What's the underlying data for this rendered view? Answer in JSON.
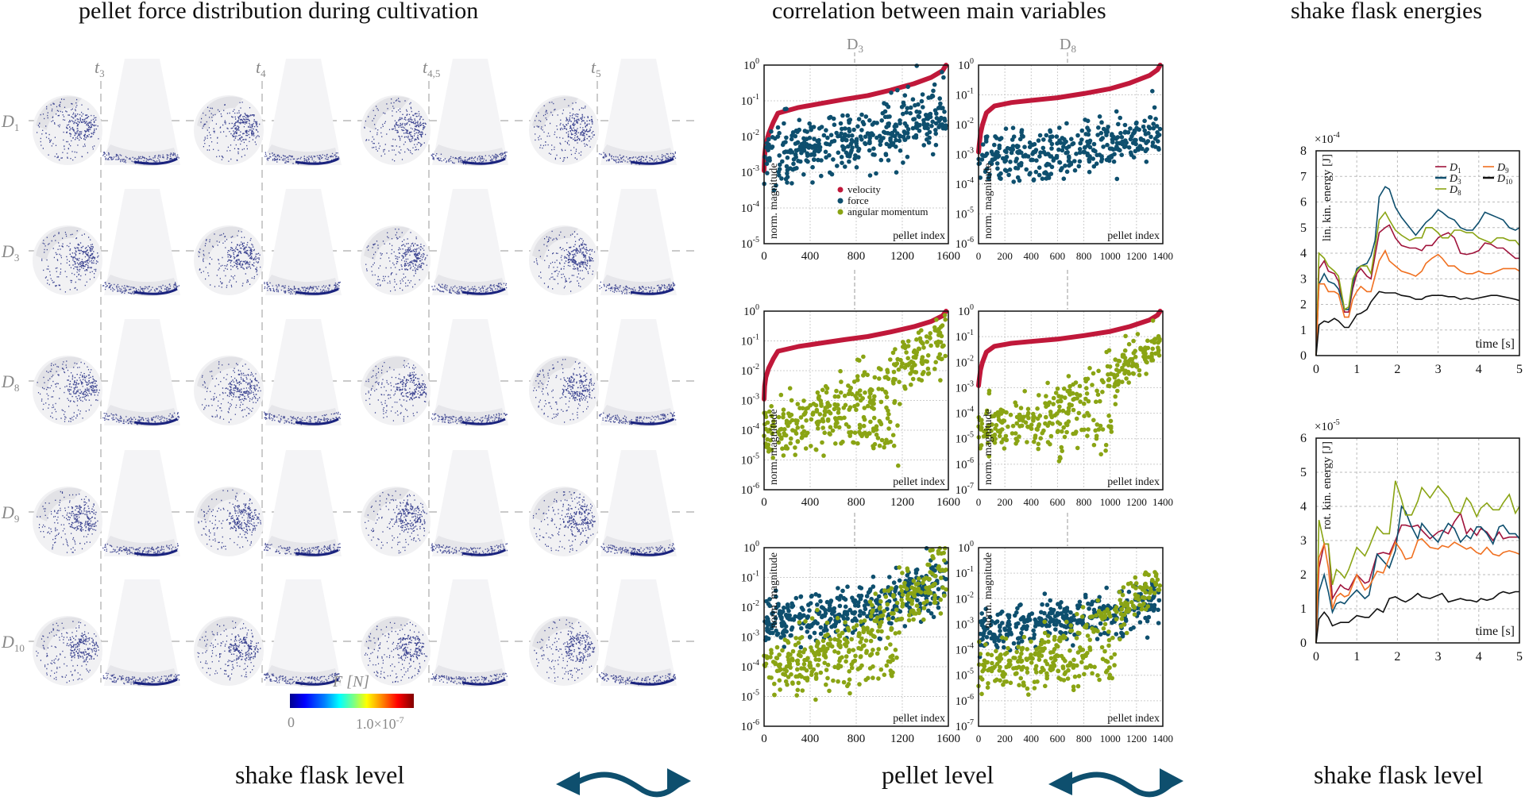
{
  "titles": {
    "left": "pellet force distribution during cultivation",
    "middle": "correlation between main variables",
    "right": "shake flask energies"
  },
  "levels": {
    "left": "shake flask level",
    "middle": "pellet level",
    "right": "shake flask level"
  },
  "colors": {
    "velocity": "#c0183a",
    "force": "#0e4f6e",
    "angular_momentum": "#8aa414",
    "arrow": "#0e4f6e",
    "D1": "#a0143c",
    "D3": "#0e4f6e",
    "D8": "#8aa414",
    "D9": "#f07020",
    "D10": "#111111"
  },
  "force_grid": {
    "time_labels": [
      "t3",
      "t4",
      "t4.5",
      "t5"
    ],
    "time_label_subs": [
      "3",
      "4",
      "4,5",
      "5"
    ],
    "design_labels": [
      "D1",
      "D3",
      "D8",
      "D9",
      "D10"
    ],
    "design_label_subs": [
      "1",
      "3",
      "8",
      "9",
      "10"
    ],
    "colorbar": {
      "title": "F [N]",
      "min_label": "0",
      "max_label": "1.0×10",
      "max_exp": "-7"
    }
  },
  "chart_data": [
    {
      "id": "corr-D3-force",
      "type": "scatter",
      "column_label": "D3",
      "xlabel": "pellet index",
      "ylabel": "norm. magnitude",
      "xlim": [
        0,
        1600
      ],
      "xticks": [
        "0",
        "400",
        "800",
        "1200",
        "1600"
      ],
      "ylim_exp": [
        -5,
        0
      ],
      "yscale": "log",
      "legend": [
        "velocity",
        "force",
        "angular momentum"
      ],
      "legend_position": "bottom-center",
      "series": [
        {
          "name": "velocity",
          "shape": "sorted-curve",
          "points": [
            [
              0,
              0.0011
            ],
            [
              5,
              0.003
            ],
            [
              15,
              0.006
            ],
            [
              40,
              0.012
            ],
            [
              80,
              0.025
            ],
            [
              120,
              0.045
            ],
            [
              300,
              0.065
            ],
            [
              500,
              0.085
            ],
            [
              700,
              0.11
            ],
            [
              900,
              0.14
            ],
            [
              1100,
              0.2
            ],
            [
              1300,
              0.3
            ],
            [
              1450,
              0.45
            ],
            [
              1550,
              0.7
            ],
            [
              1580,
              1.0
            ]
          ]
        },
        {
          "name": "force",
          "cloud": {
            "n": 1580,
            "center_start_exp": -2.5,
            "center_end_exp": -1.3,
            "spread": 0.7
          }
        }
      ]
    },
    {
      "id": "corr-D8-force",
      "type": "scatter",
      "column_label": "D8",
      "xlabel": "pellet index",
      "ylabel": "norm. magnitude",
      "xlim": [
        0,
        1400
      ],
      "xticks": [
        "0",
        "200",
        "400",
        "600",
        "800",
        "1000",
        "1200",
        "1400"
      ],
      "ylim_exp": [
        -6,
        0
      ],
      "yscale": "log",
      "series": [
        {
          "name": "velocity",
          "shape": "sorted-curve",
          "points": [
            [
              0,
              0.0012
            ],
            [
              5,
              0.002
            ],
            [
              15,
              0.005
            ],
            [
              30,
              0.01
            ],
            [
              60,
              0.025
            ],
            [
              120,
              0.042
            ],
            [
              250,
              0.055
            ],
            [
              400,
              0.065
            ],
            [
              600,
              0.08
            ],
            [
              800,
              0.11
            ],
            [
              1000,
              0.16
            ],
            [
              1150,
              0.25
            ],
            [
              1300,
              0.45
            ],
            [
              1360,
              0.7
            ],
            [
              1380,
              1.0
            ]
          ]
        },
        {
          "name": "force",
          "cloud": {
            "n": 1380,
            "center_start_exp": -3.2,
            "center_end_exp": -2.2,
            "spread": 0.7
          }
        }
      ]
    },
    {
      "id": "corr-D3-angmom",
      "type": "scatter",
      "xlabel": "pellet index",
      "ylabel": "norm. magnitude",
      "xlim": [
        0,
        1600
      ],
      "xticks": [
        "0",
        "400",
        "800",
        "1200",
        "1600"
      ],
      "ylim_exp": [
        -6,
        0
      ],
      "yscale": "log",
      "series": [
        {
          "name": "velocity",
          "shape": "sorted-curve",
          "points": [
            [
              0,
              0.0011
            ],
            [
              5,
              0.003
            ],
            [
              15,
              0.006
            ],
            [
              40,
              0.012
            ],
            [
              80,
              0.025
            ],
            [
              120,
              0.045
            ],
            [
              300,
              0.065
            ],
            [
              500,
              0.085
            ],
            [
              700,
              0.11
            ],
            [
              900,
              0.14
            ],
            [
              1100,
              0.2
            ],
            [
              1300,
              0.3
            ],
            [
              1450,
              0.45
            ],
            [
              1550,
              0.7
            ],
            [
              1580,
              1.0
            ]
          ]
        },
        {
          "name": "angular momentum",
          "cloud": {
            "n": 1580,
            "center_start_exp": -4.0,
            "center_end_exp": -0.8,
            "spread": 0.8,
            "bimodal": true
          }
        }
      ]
    },
    {
      "id": "corr-D8-angmom",
      "type": "scatter",
      "xlabel": "pellet index",
      "ylabel": "norm. magnitude",
      "xlim": [
        0,
        1400
      ],
      "xticks": [
        "0",
        "200",
        "400",
        "600",
        "800",
        "1000",
        "1200",
        "1400"
      ],
      "ylim_exp": [
        -7,
        0
      ],
      "yscale": "log",
      "series": [
        {
          "name": "velocity",
          "shape": "sorted-curve",
          "points": [
            [
              0,
              0.0012
            ],
            [
              5,
              0.002
            ],
            [
              15,
              0.005
            ],
            [
              30,
              0.01
            ],
            [
              60,
              0.025
            ],
            [
              120,
              0.042
            ],
            [
              250,
              0.055
            ],
            [
              400,
              0.065
            ],
            [
              600,
              0.08
            ],
            [
              800,
              0.11
            ],
            [
              1000,
              0.16
            ],
            [
              1150,
              0.25
            ],
            [
              1300,
              0.45
            ],
            [
              1360,
              0.7
            ],
            [
              1380,
              1.0
            ]
          ]
        },
        {
          "name": "angular momentum",
          "cloud": {
            "n": 1380,
            "center_start_exp": -4.7,
            "center_end_exp": -1.3,
            "spread": 0.8,
            "bimodal": true
          }
        }
      ]
    },
    {
      "id": "corr-D3-combined",
      "type": "scatter",
      "xlabel": "pellet index",
      "ylabel": "norm. magnitude",
      "xlim": [
        0,
        1600
      ],
      "xticks": [
        "0",
        "400",
        "800",
        "1200",
        "1600"
      ],
      "ylim_exp": [
        -6,
        0
      ],
      "yscale": "log",
      "series": [
        {
          "name": "force",
          "cloud": {
            "n": 1580,
            "center_start_exp": -2.5,
            "center_end_exp": -1.3,
            "spread": 0.7
          }
        },
        {
          "name": "angular momentum",
          "cloud": {
            "n": 1580,
            "center_start_exp": -4.0,
            "center_end_exp": -0.8,
            "spread": 0.8,
            "bimodal": true
          }
        }
      ]
    },
    {
      "id": "corr-D8-combined",
      "type": "scatter",
      "xlabel": "pellet index",
      "ylabel": "norm. magnitude",
      "xlim": [
        0,
        1400
      ],
      "xticks": [
        "0",
        "200",
        "400",
        "600",
        "800",
        "1000",
        "1200",
        "1400"
      ],
      "ylim_exp": [
        -7,
        0
      ],
      "yscale": "log",
      "series": [
        {
          "name": "force",
          "cloud": {
            "n": 1380,
            "center_start_exp": -3.2,
            "center_end_exp": -2.2,
            "spread": 0.7
          }
        },
        {
          "name": "angular momentum",
          "cloud": {
            "n": 1380,
            "center_start_exp": -4.7,
            "center_end_exp": -1.3,
            "spread": 0.8,
            "bimodal": true
          }
        }
      ]
    },
    {
      "id": "energy-linear",
      "type": "line",
      "title": "",
      "xlabel": "time [s]",
      "ylabel": "lin. kin. energy [J]",
      "multiplier": "×10",
      "multiplier_exp": "-4",
      "xlim": [
        0,
        5
      ],
      "ylim": [
        0,
        8
      ],
      "xticks": [
        "0",
        "1",
        "2",
        "3",
        "4",
        "5"
      ],
      "yticks": [
        "0",
        "1",
        "2",
        "3",
        "4",
        "5",
        "6",
        "7",
        "8"
      ],
      "grid": true,
      "legend_position": "top-right",
      "x": [
        0,
        0.07,
        0.2,
        0.3,
        0.45,
        0.55,
        0.7,
        0.8,
        0.9,
        1.0,
        1.1,
        1.25,
        1.35,
        1.45,
        1.55,
        1.7,
        1.8,
        1.95,
        2.1,
        2.3,
        2.45,
        2.6,
        2.7,
        2.85,
        3.0,
        3.1,
        3.25,
        3.4,
        3.55,
        3.7,
        3.85,
        4.0,
        4.15,
        4.3,
        4.45,
        4.6,
        4.75,
        4.9,
        5.0
      ],
      "series": [
        {
          "name": "D1",
          "values": [
            0,
            3.4,
            3.7,
            3.3,
            3.2,
            2.9,
            1.7,
            1.7,
            2.6,
            3.2,
            3.4,
            3.1,
            3.0,
            3.9,
            4.8,
            5.0,
            5.1,
            4.6,
            4.3,
            4.2,
            4.2,
            4.1,
            4.3,
            4.3,
            4.6,
            4.7,
            4.8,
            4.6,
            4.0,
            3.95,
            4.0,
            4.1,
            4.4,
            4.35,
            4.2,
            4.2,
            4.0,
            3.8,
            3.8
          ]
        },
        {
          "name": "D3",
          "values": [
            0,
            2.8,
            3.2,
            2.9,
            2.8,
            2.6,
            1.8,
            1.8,
            2.8,
            3.4,
            3.5,
            3.6,
            3.9,
            4.5,
            6.2,
            6.6,
            6.5,
            5.8,
            5.4,
            5.0,
            4.7,
            5.0,
            5.2,
            5.4,
            5.7,
            5.6,
            5.4,
            5.3,
            5.0,
            4.9,
            4.9,
            5.2,
            5.6,
            5.5,
            5.4,
            5.3,
            5.0,
            4.9,
            5.0
          ]
        },
        {
          "name": "D8",
          "values": [
            0,
            4.0,
            3.8,
            3.5,
            3.3,
            3.1,
            1.8,
            1.9,
            3.0,
            3.3,
            3.5,
            3.5,
            3.2,
            4.2,
            5.3,
            5.6,
            5.3,
            4.9,
            4.7,
            4.5,
            4.6,
            4.6,
            5.0,
            5.0,
            4.8,
            4.6,
            4.6,
            4.9,
            4.9,
            4.8,
            4.8,
            4.6,
            4.5,
            4.4,
            4.6,
            4.6,
            4.5,
            4.5,
            4.3
          ]
        },
        {
          "name": "D9",
          "values": [
            0,
            2.8,
            2.8,
            2.5,
            2.5,
            2.4,
            1.5,
            1.5,
            2.2,
            2.5,
            2.7,
            2.5,
            2.5,
            3.1,
            3.7,
            4.1,
            3.7,
            3.5,
            3.3,
            3.2,
            3.1,
            3.3,
            3.6,
            3.8,
            3.95,
            3.8,
            3.5,
            3.5,
            3.3,
            3.2,
            3.2,
            3.3,
            3.2,
            3.2,
            3.3,
            3.4,
            3.4,
            3.4,
            3.3
          ]
        },
        {
          "name": "D10",
          "values": [
            0,
            1.2,
            1.35,
            1.3,
            1.45,
            1.35,
            1.1,
            1.1,
            1.35,
            1.6,
            1.65,
            1.8,
            2.1,
            2.3,
            2.5,
            2.45,
            2.45,
            2.45,
            2.35,
            2.3,
            2.2,
            2.2,
            2.3,
            2.35,
            2.35,
            2.35,
            2.3,
            2.3,
            2.2,
            2.25,
            2.2,
            2.25,
            2.3,
            2.35,
            2.35,
            2.3,
            2.25,
            2.2,
            2.15
          ]
        }
      ]
    },
    {
      "id": "energy-rotational",
      "type": "line",
      "xlabel": "time [s]",
      "ylabel": "rot. kin. energy [J]",
      "multiplier": "×10",
      "multiplier_exp": "-5",
      "xlim": [
        0,
        5
      ],
      "ylim": [
        0,
        6
      ],
      "xticks": [
        "0",
        "1",
        "2",
        "3",
        "4",
        "5"
      ],
      "yticks": [
        "0",
        "1",
        "2",
        "3",
        "4",
        "5",
        "6"
      ],
      "grid": true,
      "x": [
        0,
        0.07,
        0.2,
        0.3,
        0.4,
        0.5,
        0.6,
        0.7,
        0.8,
        1.0,
        1.2,
        1.3,
        1.5,
        1.65,
        1.8,
        1.95,
        2.1,
        2.2,
        2.35,
        2.5,
        2.6,
        2.8,
        3.0,
        3.1,
        3.25,
        3.4,
        3.55,
        3.7,
        3.8,
        3.95,
        4.05,
        4.2,
        4.35,
        4.5,
        4.6,
        4.75,
        4.9,
        5.0
      ],
      "series": [
        {
          "name": "D1",
          "values": [
            0,
            2.2,
            2.9,
            2.9,
            1.3,
            1.5,
            1.7,
            1.6,
            1.55,
            2.0,
            1.75,
            1.8,
            2.6,
            2.65,
            2.6,
            3.0,
            3.45,
            3.45,
            3.4,
            3.45,
            3.3,
            3.05,
            3.25,
            3.3,
            3.2,
            3.55,
            3.8,
            3.2,
            3.35,
            3.15,
            3.35,
            3.25,
            3.0,
            3.25,
            3.05,
            3.1,
            3.1,
            3.1
          ]
        },
        {
          "name": "D3",
          "values": [
            0,
            1.5,
            2.0,
            1.5,
            0.9,
            1.15,
            1.2,
            1.15,
            1.3,
            1.55,
            1.3,
            1.4,
            2.6,
            2.4,
            2.2,
            2.7,
            4.0,
            3.85,
            3.4,
            3.05,
            3.5,
            3.2,
            2.95,
            3.2,
            3.5,
            3.35,
            2.95,
            3.15,
            3.05,
            3.4,
            3.4,
            3.2,
            2.9,
            3.4,
            3.45,
            3.2,
            3.2,
            3.05
          ]
        },
        {
          "name": "D8",
          "values": [
            0,
            3.6,
            2.9,
            2.9,
            1.7,
            2.15,
            2.05,
            1.9,
            2.15,
            2.8,
            2.55,
            2.8,
            3.4,
            3.2,
            3.2,
            4.75,
            4.2,
            3.75,
            3.75,
            4.15,
            4.55,
            4.25,
            4.6,
            4.45,
            4.25,
            3.85,
            3.8,
            4.25,
            4.1,
            3.7,
            3.95,
            4.1,
            3.9,
            3.9,
            4.1,
            4.35,
            3.8,
            4.0
          ]
        },
        {
          "name": "D9",
          "values": [
            0,
            2.5,
            2.9,
            2.2,
            1.0,
            1.35,
            1.45,
            1.35,
            1.4,
            2.0,
            1.55,
            1.65,
            2.1,
            2.05,
            2.5,
            2.95,
            2.7,
            2.45,
            2.5,
            3.0,
            3.05,
            2.8,
            2.75,
            2.85,
            2.8,
            2.95,
            2.85,
            2.75,
            2.8,
            2.65,
            2.6,
            2.8,
            2.6,
            2.55,
            2.65,
            2.7,
            2.65,
            2.6
          ]
        },
        {
          "name": "D10",
          "values": [
            0,
            0.7,
            0.9,
            0.75,
            0.5,
            0.55,
            0.6,
            0.6,
            0.6,
            0.8,
            0.75,
            0.75,
            1.0,
            0.9,
            1.3,
            1.35,
            1.25,
            1.2,
            1.3,
            1.45,
            1.35,
            1.3,
            1.4,
            1.45,
            1.2,
            1.25,
            1.3,
            1.25,
            1.25,
            1.2,
            1.3,
            1.25,
            1.3,
            1.45,
            1.5,
            1.45,
            1.5,
            1.5
          ]
        }
      ]
    }
  ]
}
